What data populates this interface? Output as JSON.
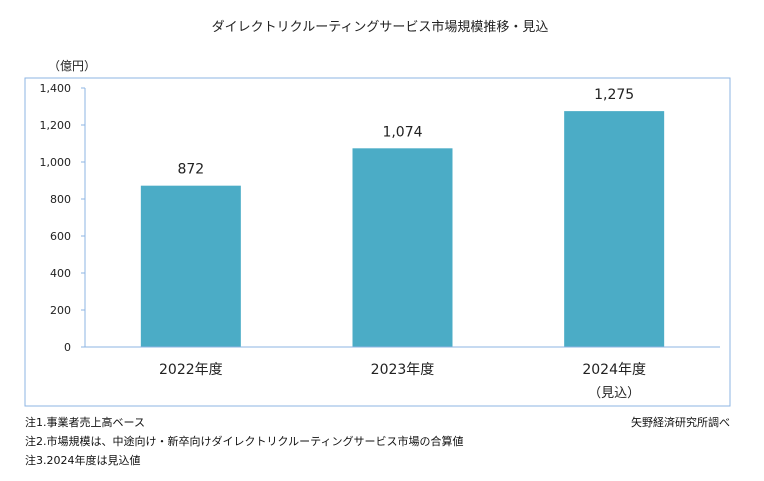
{
  "chart_data": {
    "type": "bar",
    "title": "ダイレクトリクルーティングサービス市場規模推移・見込",
    "ylabel": "（億円）",
    "xlabel": "",
    "categories": [
      "2022年度",
      "2023年度",
      "2024年度"
    ],
    "category_sublabels": [
      "",
      "",
      "（見込）"
    ],
    "values": [
      872,
      1074,
      1275
    ],
    "value_labels": [
      "872",
      "1,074",
      "1,275"
    ],
    "ylim": [
      0,
      1400
    ],
    "yticks": [
      0,
      200,
      400,
      600,
      800,
      1000,
      1200,
      1400
    ],
    "ytick_labels": [
      "0",
      "200",
      "400",
      "600",
      "800",
      "1,000",
      "1,200",
      "1,400"
    ],
    "grid": false,
    "bar_color": "#4BACC6"
  },
  "notes": [
    "注1.事業者売上高ベース",
    "注2.市場規模は、中途向け・新卒向けダイレクトリクルーティングサービス市場の合算値",
    "注3.2024年度は見込値"
  ],
  "source": "矢野経済研究所調べ"
}
